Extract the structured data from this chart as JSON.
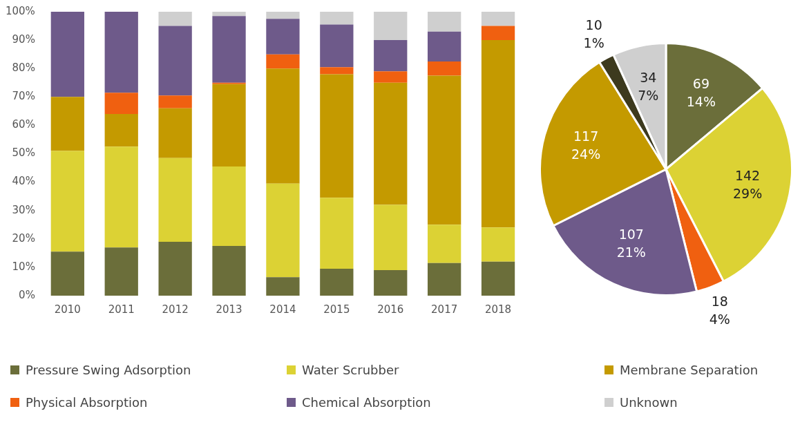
{
  "chart_data": [
    {
      "type": "bar",
      "stacked": true,
      "categories": [
        "2010",
        "2011",
        "2012",
        "2013",
        "2014",
        "2015",
        "2016",
        "2017",
        "2018"
      ],
      "ylim": [
        0,
        100
      ],
      "yticks": [
        {
          "value": 0,
          "label": "0%"
        },
        {
          "value": 10,
          "label": "10%"
        },
        {
          "value": 20,
          "label": "20%"
        },
        {
          "value": 30,
          "label": "30%"
        },
        {
          "value": 40,
          "label": "40%"
        },
        {
          "value": 50,
          "label": "50%"
        },
        {
          "value": 60,
          "label": "60%"
        },
        {
          "value": 70,
          "label": "70%"
        },
        {
          "value": 80,
          "label": "80%"
        },
        {
          "value": 90,
          "label": "90%"
        },
        {
          "value": 100,
          "label": "100%"
        }
      ],
      "grid": false,
      "legend": "bottom",
      "series": [
        {
          "name": "Pressure Swing Adsorption",
          "color": "#6b6e3a",
          "values": [
            15.5,
            17,
            19,
            17.5,
            6.5,
            9.5,
            9,
            11.5,
            12
          ]
        },
        {
          "name": "Water Scrubber",
          "color": "#dcd234",
          "values": [
            35.5,
            35.5,
            29.5,
            28,
            33,
            25,
            23,
            13.5,
            12
          ]
        },
        {
          "name": "Membrane Separation",
          "color": "#c49a00",
          "values": [
            19,
            11.5,
            17.5,
            29,
            40.5,
            43.5,
            43,
            52.5,
            66
          ]
        },
        {
          "name": "Physical Absorption",
          "color": "#f06010",
          "values": [
            0,
            7.5,
            4.5,
            0.5,
            5,
            2.5,
            4,
            5,
            5
          ]
        },
        {
          "name": "Chemical Absorption",
          "color": "#6e5a8a",
          "values": [
            30,
            28.5,
            24.5,
            23.5,
            12.5,
            15,
            11,
            10.5,
            0
          ]
        },
        {
          "name": "Unknown",
          "color": "#cfcfcf",
          "values": [
            0,
            0,
            5,
            1.5,
            2.5,
            4.5,
            10,
            7,
            5
          ]
        }
      ]
    },
    {
      "type": "pie",
      "categories": [
        null,
        null,
        null,
        null,
        null,
        null,
        null
      ],
      "values": [
        69,
        142,
        18,
        107,
        117,
        10,
        34
      ],
      "colors": [
        "#6b6e3a",
        "#dcd234",
        "#f06010",
        "#6e5a8a",
        "#c49a00",
        "#3d3a1e",
        "#cfcfcf"
      ],
      "value_labels": [
        "69\n14%",
        "142\n29%",
        "18\n4%",
        "107\n21%",
        "117\n24%",
        "10\n1%",
        "34\n7%"
      ],
      "legend": false
    }
  ]
}
